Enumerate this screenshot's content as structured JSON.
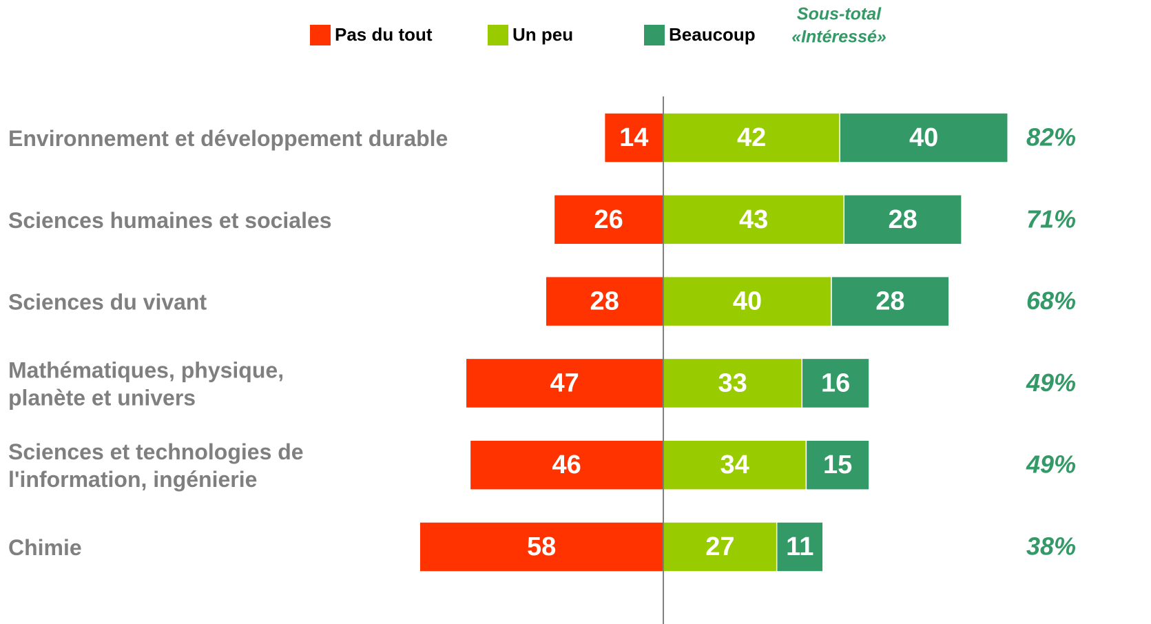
{
  "chart_data": {
    "type": "diverging_bar",
    "categories": [
      "Environnement et développement durable",
      "Sciences humaines et sociales",
      "Sciences du vivant",
      "Mathématiques, physique,\nplanète et univers",
      "Sciences  et technologies de\nl'information, ingénierie",
      "Chimie"
    ],
    "series": [
      {
        "name": "Pas du tout",
        "color": "#ff3300",
        "direction": "negative",
        "values": [
          14,
          26,
          28,
          47,
          46,
          58
        ]
      },
      {
        "name": "Un peu",
        "color": "#99cc00",
        "direction": "positive",
        "values": [
          42,
          43,
          40,
          33,
          34,
          27
        ]
      },
      {
        "name": "Beaucoup",
        "color": "#339966",
        "direction": "positive",
        "values": [
          40,
          28,
          28,
          16,
          15,
          11
        ]
      }
    ],
    "subtotal": {
      "title": [
        "Sous-total",
        "«Intéressé»"
      ],
      "color": "#339966",
      "values": [
        82,
        71,
        68,
        49,
        49,
        38
      ],
      "value_labels": [
        "82%",
        "71%",
        "68%",
        "49%",
        "49%",
        "38%"
      ]
    }
  }
}
